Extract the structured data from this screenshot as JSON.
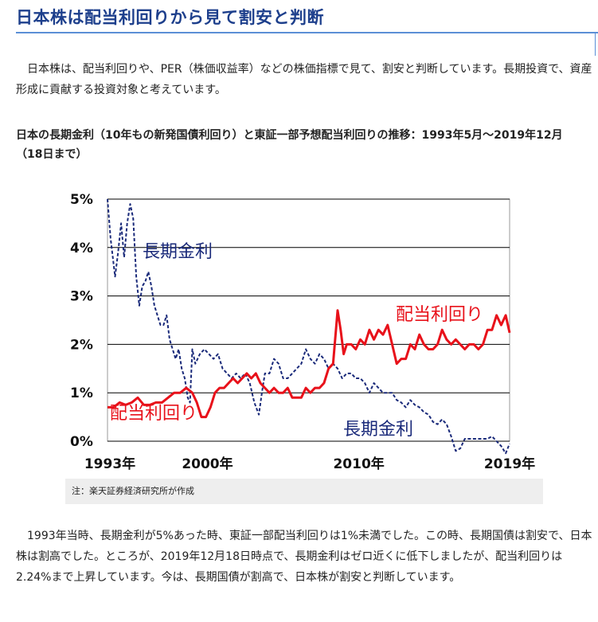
{
  "header": {
    "title": "日本株は配当利回りから見て割安と判断"
  },
  "intro": {
    "text": "日本株は、配当利回りや、PER（株価収益率）などの株価指標で見て、割安と判断しています。長期投資で、資産形成に貢献する投資対象と考えています。"
  },
  "chart_section": {
    "title": "日本の長期金利（10年もの新発国債利回り）と東証一部予想配当利回りの推移：1993年5月〜2019年12月（18日まで）",
    "note": "注：楽天証券経済研究所が作成"
  },
  "chart_data": {
    "type": "line",
    "title": "",
    "xlabel": "",
    "ylabel": "",
    "xlim": [
      1993.4,
      2019.96
    ],
    "ylim": [
      0,
      5
    ],
    "y_ticks": [
      "5%",
      "4%",
      "3%",
      "2%",
      "1%",
      "0%"
    ],
    "y_tick_values": [
      5,
      4,
      3,
      2,
      1,
      0
    ],
    "x_ticks": [
      "1993年",
      "2000年",
      "2010年",
      "2019年"
    ],
    "x_tick_values": [
      1993.4,
      2000,
      2010,
      2019.96
    ],
    "grid": true,
    "series": [
      {
        "name": "長期金利",
        "color": "#1a2a7a",
        "style": "dashed",
        "label_positions": [
          "upper-left",
          "lower-right"
        ],
        "x": [
          1993.4,
          1993.6,
          1993.9,
          1994.1,
          1994.3,
          1994.5,
          1994.7,
          1994.9,
          1995.1,
          1995.3,
          1995.5,
          1995.7,
          1995.9,
          1996.1,
          1996.3,
          1996.5,
          1996.7,
          1996.9,
          1997.1,
          1997.3,
          1997.5,
          1997.7,
          1997.9,
          1998.1,
          1998.3,
          1998.5,
          1998.7,
          1998.85,
          1999.0,
          1999.2,
          1999.5,
          1999.8,
          2000.1,
          2000.4,
          2000.7,
          2001.0,
          2001.3,
          2001.6,
          2001.9,
          2002.2,
          2002.5,
          2002.8,
          2003.1,
          2003.4,
          2003.6,
          2003.8,
          2004.1,
          2004.4,
          2004.7,
          2005.0,
          2005.3,
          2005.6,
          2005.9,
          2006.2,
          2006.5,
          2006.8,
          2007.1,
          2007.4,
          2007.7,
          2008.0,
          2008.3,
          2008.6,
          2008.9,
          2009.2,
          2009.5,
          2009.8,
          2010.1,
          2010.4,
          2010.7,
          2011.0,
          2011.3,
          2011.6,
          2011.9,
          2012.2,
          2012.5,
          2012.8,
          2013.1,
          2013.4,
          2013.7,
          2014.0,
          2014.3,
          2014.6,
          2014.9,
          2015.2,
          2015.5,
          2015.8,
          2016.1,
          2016.4,
          2016.7,
          2017.0,
          2017.3,
          2017.6,
          2017.9,
          2018.2,
          2018.5,
          2018.8,
          2019.1,
          2019.4,
          2019.7,
          2019.96
        ],
        "values": [
          5.0,
          4.2,
          3.4,
          3.9,
          4.5,
          3.8,
          4.5,
          4.9,
          4.6,
          3.4,
          2.8,
          3.2,
          3.3,
          3.5,
          3.2,
          2.8,
          2.6,
          2.4,
          2.4,
          2.6,
          2.1,
          1.9,
          1.7,
          1.9,
          1.5,
          1.3,
          0.9,
          0.8,
          1.9,
          1.6,
          1.8,
          1.9,
          1.8,
          1.7,
          1.8,
          1.5,
          1.4,
          1.3,
          1.4,
          1.3,
          1.4,
          1.2,
          0.8,
          0.55,
          1.0,
          1.4,
          1.4,
          1.7,
          1.6,
          1.3,
          1.3,
          1.4,
          1.5,
          1.6,
          1.9,
          1.7,
          1.6,
          1.8,
          1.7,
          1.5,
          1.6,
          1.5,
          1.3,
          1.4,
          1.4,
          1.3,
          1.3,
          1.2,
          1.0,
          1.2,
          1.1,
          1.0,
          1.0,
          1.0,
          0.85,
          0.8,
          0.7,
          0.85,
          0.75,
          0.7,
          0.6,
          0.55,
          0.4,
          0.35,
          0.45,
          0.35,
          0.1,
          -0.2,
          -0.15,
          0.05,
          0.05,
          0.05,
          0.05,
          0.05,
          0.05,
          0.1,
          0.0,
          -0.1,
          -0.25,
          -0.05
        ]
      },
      {
        "name": "配当利回り",
        "color": "#e8111a",
        "style": "solid",
        "label_positions": [
          "lower-left",
          "upper-right"
        ],
        "x": [
          1993.4,
          1993.8,
          1994.2,
          1994.6,
          1995.0,
          1995.4,
          1995.8,
          1996.2,
          1996.6,
          1997.0,
          1997.4,
          1997.8,
          1998.2,
          1998.6,
          1999.0,
          1999.3,
          1999.6,
          1999.9,
          2000.2,
          2000.5,
          2000.8,
          2001.1,
          2001.4,
          2001.7,
          2002.0,
          2002.3,
          2002.6,
          2002.9,
          2003.2,
          2003.5,
          2003.8,
          2004.1,
          2004.4,
          2004.7,
          2005.0,
          2005.3,
          2005.6,
          2005.9,
          2006.2,
          2006.5,
          2006.8,
          2007.1,
          2007.4,
          2007.7,
          2008.0,
          2008.3,
          2008.6,
          2008.8,
          2009.0,
          2009.2,
          2009.5,
          2009.8,
          2010.1,
          2010.4,
          2010.7,
          2011.0,
          2011.3,
          2011.6,
          2011.9,
          2012.2,
          2012.5,
          2012.8,
          2013.1,
          2013.4,
          2013.7,
          2014.0,
          2014.3,
          2014.6,
          2014.9,
          2015.2,
          2015.5,
          2015.8,
          2016.1,
          2016.4,
          2016.7,
          2017.0,
          2017.3,
          2017.6,
          2017.9,
          2018.2,
          2018.5,
          2018.8,
          2019.1,
          2019.4,
          2019.7,
          2019.96
        ],
        "values": [
          0.7,
          0.7,
          0.8,
          0.75,
          0.8,
          0.9,
          0.75,
          0.75,
          0.8,
          0.8,
          0.9,
          1.0,
          1.0,
          1.1,
          1.0,
          0.8,
          0.5,
          0.5,
          0.7,
          1.0,
          1.1,
          1.1,
          1.2,
          1.3,
          1.2,
          1.3,
          1.4,
          1.3,
          1.4,
          1.2,
          1.1,
          1.0,
          1.1,
          1.0,
          1.0,
          1.1,
          0.9,
          0.9,
          0.9,
          1.1,
          1.0,
          1.1,
          1.1,
          1.2,
          1.5,
          1.6,
          2.7,
          2.3,
          1.8,
          2.0,
          2.0,
          1.9,
          2.1,
          2.0,
          2.3,
          2.1,
          2.3,
          2.2,
          2.4,
          2.0,
          1.6,
          1.7,
          1.7,
          2.0,
          1.9,
          2.2,
          2.0,
          1.9,
          1.9,
          2.0,
          2.3,
          2.1,
          2.0,
          2.1,
          2.0,
          1.9,
          2.0,
          2.0,
          1.9,
          2.0,
          2.3,
          2.3,
          2.6,
          2.4,
          2.6,
          2.24
        ]
      }
    ]
  },
  "summary": {
    "text": "1993年当時、長期金利が5%あった時、東証一部配当利回りは1%未満でした。この時、長期国債は割安で、日本株は割高でした。ところが、2019年12月18日時点で、長期金利はゼロ近くに低下しましたが、配当利回りは2.24%まで上昇しています。今は、長期国債が割高で、日本株が割安と判断しています。"
  }
}
